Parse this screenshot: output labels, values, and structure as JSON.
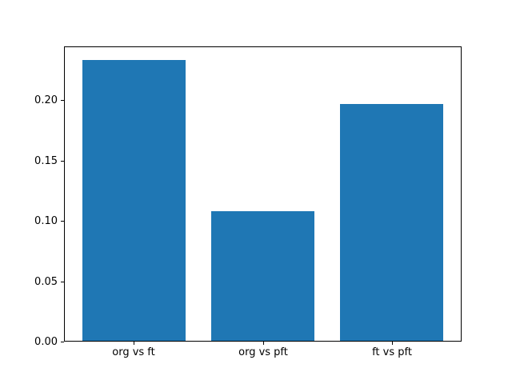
{
  "figure": {
    "background_color": "#ffffff",
    "bar_color": "#1f77b4",
    "spine_color": "#000000",
    "text_color": "#000000"
  },
  "chart_data": {
    "type": "bar",
    "title": "",
    "xlabel": "",
    "ylabel": "",
    "categories": [
      "org vs ft",
      "org vs pft",
      "ft vs pft"
    ],
    "values": [
      0.233,
      0.108,
      0.197
    ],
    "bar_half_width": 0.4,
    "xlim": [
      -0.54,
      2.54
    ],
    "ylim": [
      0,
      0.2444
    ],
    "yticks": [
      0.0,
      0.05,
      0.1,
      0.15,
      0.2
    ],
    "ytick_labels": [
      "0.00",
      "0.05",
      "0.10",
      "0.15",
      "0.20"
    ],
    "grid": false,
    "legend": null
  }
}
